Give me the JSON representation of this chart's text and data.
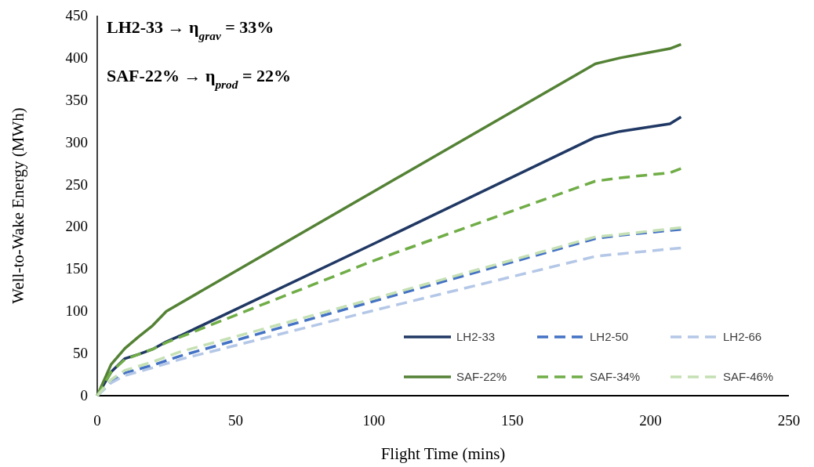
{
  "chart_data": {
    "type": "line",
    "xlabel": "Flight Time (mins)",
    "ylabel": "Well-to-Wake Energy (MWh)",
    "annotations": [
      "LH2-33 → η$_{grav}$ = 33%",
      "SAF-22% → η$_{prod}$ = 22%"
    ],
    "xlim": [
      0,
      250
    ],
    "xticks": [
      0,
      50,
      100,
      150,
      200,
      250
    ],
    "ylim": [
      0,
      450
    ],
    "yticks": [
      0,
      50,
      100,
      150,
      200,
      250,
      300,
      350,
      400,
      450
    ],
    "grid": false,
    "legend": "bottom right",
    "marker": "none",
    "series": [
      {
        "name": "LH2-33",
        "color": "#203864",
        "line_style": "solid",
        "x": [
          0,
          5,
          10,
          15,
          20,
          25,
          30,
          100,
          180,
          189,
          207,
          211
        ],
        "values": [
          0,
          28,
          44,
          49,
          55,
          64,
          71,
          180,
          306,
          313,
          322,
          330
        ]
      },
      {
        "name": "LH2-50",
        "color": "#4472c4",
        "line_style": "dashed",
        "x": [
          0,
          5,
          10,
          20,
          30,
          100,
          180,
          189,
          211
        ],
        "values": [
          0,
          17,
          27,
          36,
          47,
          112,
          186,
          190,
          197
        ]
      },
      {
        "name": "LH2-66",
        "color": "#b4c7e7",
        "line_style": "dashed",
        "x": [
          0,
          5,
          10,
          20,
          30,
          100,
          180,
          189,
          211
        ],
        "values": [
          0,
          15,
          24,
          33,
          43,
          101,
          165,
          168,
          175
        ]
      },
      {
        "name": "SAF-22%",
        "color": "#548235",
        "line_style": "solid",
        "x": [
          0,
          5,
          10,
          15,
          20,
          25,
          100,
          180,
          189,
          207,
          211
        ],
        "values": [
          0,
          37,
          56,
          70,
          83,
          100,
          242,
          393,
          400,
          411,
          416
        ]
      },
      {
        "name": "SAF-34%",
        "color": "#70ad47",
        "line_style": "dashed",
        "x": [
          0,
          5,
          10,
          15,
          20,
          25,
          100,
          180,
          189,
          207,
          211
        ],
        "values": [
          0,
          28,
          43,
          49,
          55,
          63,
          160,
          254,
          258,
          264,
          269
        ]
      },
      {
        "name": "SAF-46%",
        "color": "#c5e0b4",
        "line_style": "dashed",
        "x": [
          0,
          5,
          10,
          20,
          30,
          100,
          180,
          189,
          211
        ],
        "values": [
          0,
          19,
          30,
          40,
          52,
          115,
          188,
          191,
          199
        ]
      }
    ]
  }
}
